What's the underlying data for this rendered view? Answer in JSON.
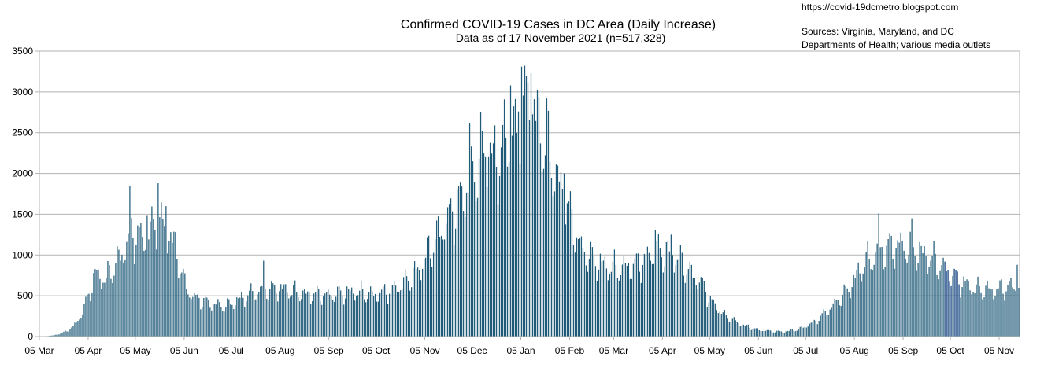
{
  "chart_data": {
    "type": "bar",
    "title": "Confirmed COVID-19 Cases in DC Area (Daily Increase)",
    "subtitle": "Data as of 17 November 2021 (n=517,328)",
    "source_url": "https://covid-19dcmetro.blogspot.com",
    "source_line1": "Sources: Virginia, Maryland, and DC",
    "source_line2": "Departments of Health; various media outlets",
    "xlabel": "",
    "ylabel": "",
    "ylim": [
      0,
      3500
    ],
    "yticks": [
      0,
      500,
      1000,
      1500,
      2000,
      2500,
      3000,
      3500
    ],
    "grid": true,
    "start_date": "2020-03-05",
    "end_date": "2021-11-17",
    "x_tick_labels": [
      "05 Mar",
      "05 Apr",
      "05 May",
      "05 Jun",
      "05 Jul",
      "05 Aug",
      "05 Sep",
      "05 Oct",
      "05 Nov",
      "05 Dec",
      "05 Jan",
      "05 Feb",
      "05 Mar",
      "05 Apr",
      "05 May",
      "05 Jun",
      "05 Jul",
      "05 Aug",
      "05 Sep",
      "05 Oct",
      "05 Nov"
    ],
    "x_tick_dates": [
      "2020-03-05",
      "2020-04-05",
      "2020-05-05",
      "2020-06-05",
      "2020-07-05",
      "2020-08-05",
      "2020-09-05",
      "2020-10-05",
      "2020-11-05",
      "2020-12-05",
      "2021-01-05",
      "2021-02-05",
      "2021-03-05",
      "2021-04-05",
      "2021-05-05",
      "2021-06-05",
      "2021-07-05",
      "2021-08-05",
      "2021-09-05",
      "2021-10-05",
      "2021-11-05"
    ],
    "series": [
      {
        "color": "#1f5a78",
        "highlight_color": "#0a3c7a",
        "highlight_dates": [
          "2021-10-01",
          "2021-10-02",
          "2021-10-03",
          "2021-10-04",
          "2021-10-05",
          "2021-10-07",
          "2021-10-08",
          "2021-10-09",
          "2021-10-10"
        ],
        "value_anchors": [
          [
            "2020-03-05",
            0
          ],
          [
            "2020-03-12",
            10
          ],
          [
            "2020-03-19",
            40
          ],
          [
            "2020-03-26",
            120
          ],
          [
            "2020-04-01",
            300
          ],
          [
            "2020-04-05",
            550
          ],
          [
            "2020-04-10",
            800
          ],
          [
            "2020-04-15",
            700
          ],
          [
            "2020-04-20",
            850
          ],
          [
            "2020-04-25",
            1000
          ],
          [
            "2020-05-01",
            1250
          ],
          [
            "2020-05-05",
            1300
          ],
          [
            "2020-05-09",
            1200
          ],
          [
            "2020-05-14",
            1350
          ],
          [
            "2020-05-20",
            1400
          ],
          [
            "2020-05-26",
            1300
          ],
          [
            "2020-05-31",
            1050
          ],
          [
            "2020-06-05",
            650
          ],
          [
            "2020-06-10",
            500
          ],
          [
            "2020-06-20",
            420
          ],
          [
            "2020-07-01",
            380
          ],
          [
            "2020-07-10",
            470
          ],
          [
            "2020-07-20",
            560
          ],
          [
            "2020-08-05",
            600
          ],
          [
            "2020-08-20",
            530
          ],
          [
            "2020-09-05",
            520
          ],
          [
            "2020-09-20",
            560
          ],
          [
            "2020-10-05",
            520
          ],
          [
            "2020-10-20",
            640
          ],
          [
            "2020-11-01",
            850
          ],
          [
            "2020-11-05",
            1000
          ],
          [
            "2020-11-15",
            1350
          ],
          [
            "2020-11-25",
            1650
          ],
          [
            "2020-12-05",
            2000
          ],
          [
            "2020-12-12",
            2350
          ],
          [
            "2020-12-20",
            2200
          ],
          [
            "2020-12-27",
            2500
          ],
          [
            "2021-01-05",
            2800
          ],
          [
            "2021-01-10",
            3000
          ],
          [
            "2021-01-15",
            2700
          ],
          [
            "2021-01-22",
            2300
          ],
          [
            "2021-01-29",
            1900
          ],
          [
            "2021-02-05",
            1500
          ],
          [
            "2021-02-12",
            1100
          ],
          [
            "2021-02-20",
            950
          ],
          [
            "2021-03-05",
            850
          ],
          [
            "2021-03-20",
            900
          ],
          [
            "2021-03-30",
            1050
          ],
          [
            "2021-04-10",
            1050
          ],
          [
            "2021-04-20",
            850
          ],
          [
            "2021-04-30",
            650
          ],
          [
            "2021-05-05",
            450
          ],
          [
            "2021-05-15",
            250
          ],
          [
            "2021-05-25",
            150
          ],
          [
            "2021-06-05",
            80
          ],
          [
            "2021-06-20",
            60
          ],
          [
            "2021-06-30",
            90
          ],
          [
            "2021-07-10",
            180
          ],
          [
            "2021-07-20",
            350
          ],
          [
            "2021-08-01",
            600
          ],
          [
            "2021-08-10",
            900
          ],
          [
            "2021-08-20",
            1050
          ],
          [
            "2021-09-01",
            1150
          ],
          [
            "2021-09-10",
            1100
          ],
          [
            "2021-09-20",
            1000
          ],
          [
            "2021-10-01",
            850
          ],
          [
            "2021-10-10",
            700
          ],
          [
            "2021-10-20",
            600
          ],
          [
            "2021-11-01",
            580
          ],
          [
            "2021-11-17",
            650
          ]
        ],
        "spikes": [
          [
            "2020-05-01",
            1850
          ],
          [
            "2020-05-19",
            1880
          ],
          [
            "2020-05-24",
            1600
          ],
          [
            "2020-05-12",
            1480
          ],
          [
            "2020-07-25",
            930
          ],
          [
            "2020-12-03",
            2620
          ],
          [
            "2020-12-10",
            2750
          ],
          [
            "2020-12-15",
            2200
          ],
          [
            "2020-12-29",
            3080
          ],
          [
            "2021-01-02",
            2500
          ],
          [
            "2021-01-05",
            3310
          ],
          [
            "2021-01-11",
            3230
          ],
          [
            "2021-01-21",
            2920
          ],
          [
            "2021-02-01",
            2000
          ],
          [
            "2021-03-31",
            1310
          ],
          [
            "2021-04-10",
            1250
          ],
          [
            "2021-08-20",
            1510
          ],
          [
            "2021-09-10",
            1450
          ],
          [
            "2021-11-16",
            880
          ]
        ]
      }
    ]
  }
}
